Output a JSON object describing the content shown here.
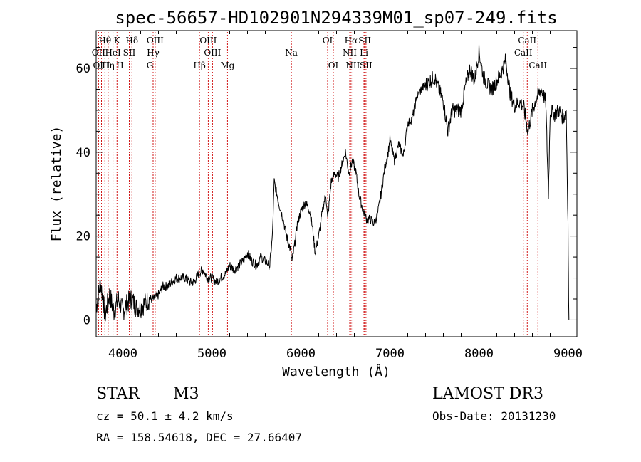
{
  "chart_data": {
    "type": "line",
    "title": "spec-56657-HD102901N294339M01_sp07-249.fits",
    "xlabel": "Wavelength (Å)",
    "ylabel": "Flux (relative)",
    "xlim": [
      3700,
      9100
    ],
    "ylim": [
      -4,
      69
    ],
    "xticks": [
      4000,
      5000,
      6000,
      7000,
      8000,
      9000
    ],
    "yticks": [
      0,
      20,
      40,
      60
    ],
    "series": [
      {
        "name": "spectrum",
        "x": [
          3700,
          3750,
          3800,
          3850,
          3900,
          3950,
          4000,
          4050,
          4100,
          4150,
          4200,
          4250,
          4300,
          4350,
          4400,
          4450,
          4500,
          4550,
          4600,
          4650,
          4700,
          4750,
          4800,
          4850,
          4900,
          4950,
          5000,
          5050,
          5100,
          5150,
          5200,
          5250,
          5300,
          5350,
          5400,
          5450,
          5500,
          5550,
          5600,
          5650,
          5680,
          5700,
          5750,
          5800,
          5850,
          5880,
          5900,
          5930,
          5960,
          6000,
          6050,
          6100,
          6130,
          6160,
          6200,
          6250,
          6280,
          6300,
          6340,
          6380,
          6420,
          6460,
          6500,
          6540,
          6580,
          6620,
          6650,
          6700,
          6740,
          6780,
          6820,
          6860,
          6900,
          6940,
          6980,
          7000,
          7050,
          7100,
          7150,
          7200,
          7250,
          7300,
          7350,
          7400,
          7450,
          7500,
          7550,
          7600,
          7650,
          7700,
          7750,
          7800,
          7850,
          7900,
          7950,
          8000,
          8050,
          8100,
          8150,
          8200,
          8250,
          8300,
          8350,
          8400,
          8450,
          8500,
          8550,
          8600,
          8650,
          8700,
          8750,
          8780,
          8800,
          8850,
          8900,
          8950,
          8980,
          9000,
          9005,
          9010
        ],
        "values": [
          3,
          9,
          1,
          6,
          2,
          5,
          2,
          4,
          5,
          3,
          3,
          4,
          5,
          5,
          6,
          8,
          8,
          9,
          10,
          10,
          10,
          9,
          9,
          11,
          12,
          10,
          10,
          9,
          10,
          11,
          13,
          12,
          13,
          14,
          16,
          14,
          13,
          15,
          14,
          13,
          20,
          33,
          28,
          24,
          19,
          17,
          14,
          18,
          23,
          26,
          28,
          26,
          22,
          16,
          20,
          27,
          30,
          24,
          33,
          35,
          34,
          37,
          40,
          35,
          38,
          35,
          30,
          26,
          24,
          24,
          23,
          25,
          30,
          36,
          40,
          43,
          38,
          42,
          39,
          47,
          48,
          53,
          55,
          56,
          57,
          58,
          55,
          52,
          45,
          50,
          50,
          50,
          56,
          60,
          57,
          64,
          58,
          56,
          55,
          57,
          59,
          62,
          54,
          51,
          52,
          51,
          45,
          50,
          53,
          55,
          52,
          30,
          50,
          49,
          50,
          48,
          50,
          23,
          10,
          0
        ]
      }
    ],
    "emission_lines": [
      {
        "label": "Hθ",
        "x": 3798,
        "row": 0
      },
      {
        "label": "K",
        "x": 3934,
        "row": 0
      },
      {
        "label": "Hδ",
        "x": 4102,
        "row": 0
      },
      {
        "label": "OIII",
        "x": 4363,
        "row": 0
      },
      {
        "label": "OIII",
        "x": 4959,
        "row": 0
      },
      {
        "label": "OI",
        "x": 6300,
        "row": 0
      },
      {
        "label": "Hα",
        "x": 6563,
        "row": 0
      },
      {
        "label": "SII",
        "x": 6717,
        "row": 0
      },
      {
        "label": "CaII",
        "x": 8542,
        "row": 0
      },
      {
        "label": "OII",
        "x": 3727,
        "row": 1
      },
      {
        "label": "HeI",
        "x": 3889,
        "row": 1
      },
      {
        "label": "SII",
        "x": 4072,
        "row": 1
      },
      {
        "label": "Hγ",
        "x": 4340,
        "row": 1
      },
      {
        "label": "OIII",
        "x": 5007,
        "row": 1
      },
      {
        "label": "Na",
        "x": 5893,
        "row": 1
      },
      {
        "label": "NII",
        "x": 6548,
        "row": 1
      },
      {
        "label": "Li",
        "x": 6708,
        "row": 1
      },
      {
        "label": "CaII",
        "x": 8498,
        "row": 1
      },
      {
        "label": "OIII",
        "x": 3760,
        "row": 2
      },
      {
        "label": "Hη",
        "x": 3835,
        "row": 2
      },
      {
        "label": "H",
        "x": 3968,
        "row": 2
      },
      {
        "label": "G",
        "x": 4304,
        "row": 2
      },
      {
        "label": "Hβ",
        "x": 4861,
        "row": 2
      },
      {
        "label": "Mg",
        "x": 5175,
        "row": 2
      },
      {
        "label": "OI",
        "x": 6364,
        "row": 2
      },
      {
        "label": "NII",
        "x": 6583,
        "row": 2
      },
      {
        "label": "SII",
        "x": 6731,
        "row": 2
      },
      {
        "label": "CaII",
        "x": 8662,
        "row": 2
      }
    ]
  },
  "info": {
    "object_type": "STAR",
    "subclass": "M3",
    "survey": "LAMOST DR3",
    "cz": "cz = 50.1 ± 4.2 km/s",
    "obs_date": "Obs-Date: 20131230",
    "coords": "RA = 158.54618, DEC =  27.66407"
  },
  "colors": {
    "line_marker": "#cc0000",
    "spectrum": "#000000",
    "axes": "#000000"
  }
}
